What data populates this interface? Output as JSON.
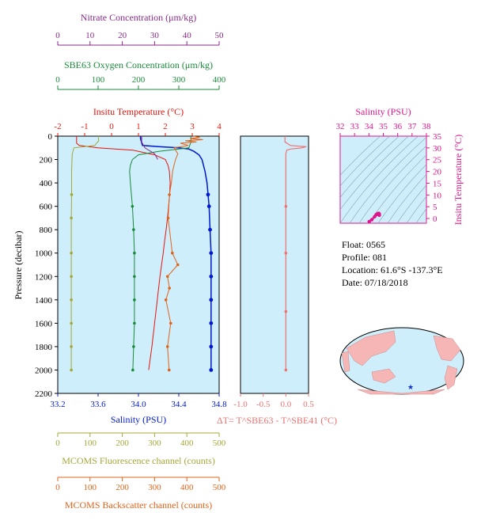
{
  "chart_data": {
    "type": "line",
    "float_info": {
      "float": "Float:  0565",
      "profile": "Profile:  081",
      "location": "Location:  61.6°S  -137.3°E",
      "date": "Date:  07/18/2018"
    },
    "colors": {
      "temperature": "#e8140c",
      "salinity": "#0018d0",
      "oxygen": "#1a8a3a",
      "nitrate": "#8a2a8a",
      "fluorescence": "#a4a83a",
      "backscatter": "#e0641c",
      "delta_t": "#f07070",
      "ts_points": "#e0148c",
      "plot_bg": "#cdeefa"
    },
    "main_plot": {
      "ylabel": "Pressure (decibar)",
      "y_ticks": [
        "0",
        "200",
        "400",
        "600",
        "800",
        "1000",
        "1200",
        "1400",
        "1600",
        "1800",
        "2000",
        "2200"
      ],
      "ylim": [
        0,
        2200
      ],
      "axes": {
        "nitrate": {
          "label": "Nitrate Concentration (μm/kg)",
          "ticks": [
            "0",
            "10",
            "20",
            "30",
            "40",
            "50"
          ],
          "range": [
            0,
            50
          ]
        },
        "oxygen": {
          "label": "SBE63 Oxygen Concentration (μm/kg)",
          "ticks": [
            "0",
            "100",
            "200",
            "300",
            "400"
          ],
          "range": [
            0,
            400
          ]
        },
        "temperature": {
          "label": "Insitu Temperature (°C)",
          "ticks": [
            "-2",
            "-1",
            "0",
            "1",
            "2",
            "3",
            "4"
          ],
          "range": [
            -2,
            4
          ]
        },
        "salinity": {
          "label": "Salinity (PSU)",
          "ticks": [
            "33.2",
            "33.6",
            "34.0",
            "34.4",
            "34.8"
          ],
          "range": [
            33.2,
            34.8
          ]
        },
        "fluorescence": {
          "label": "MCOMS Fluorescence channel (counts)",
          "ticks": [
            "0",
            "100",
            "200",
            "300",
            "400",
            "500"
          ],
          "range": [
            0,
            500
          ]
        },
        "backscatter": {
          "label": "MCOMS Backscatter channel (counts)",
          "ticks": [
            "0",
            "100",
            "200",
            "300",
            "400",
            "500"
          ],
          "range": [
            0,
            500
          ]
        }
      }
    },
    "series": [
      {
        "key": "temperature",
        "p": [
          0,
          10,
          30,
          60,
          80,
          100,
          120,
          160,
          200,
          250,
          300,
          400,
          500,
          600,
          700,
          800,
          900,
          1000,
          1200,
          1400,
          1600,
          1800,
          2000
        ],
        "values": [
          -1.3,
          -1.3,
          -1.3,
          -1.3,
          -1.2,
          -0.5,
          0.8,
          1.6,
          2.0,
          2.1,
          2.15,
          2.18,
          2.16,
          2.12,
          2.08,
          2.03,
          1.97,
          1.92,
          1.8,
          1.7,
          1.6,
          1.5,
          1.38
        ]
      },
      {
        "key": "salinity",
        "p": [
          0,
          20,
          50,
          80,
          90,
          100,
          110,
          130,
          160,
          200,
          300,
          400,
          500,
          600,
          800,
          1000,
          1200,
          1400,
          1600,
          1800,
          2000
        ],
        "values": [
          34.02,
          34.02,
          34.03,
          34.04,
          34.2,
          34.4,
          34.5,
          34.55,
          34.6,
          34.63,
          34.66,
          34.68,
          34.69,
          34.7,
          34.71,
          34.72,
          34.72,
          34.72,
          34.72,
          34.72,
          34.72
        ]
      },
      {
        "key": "oxygen",
        "p": [
          0,
          50,
          100,
          130,
          160,
          200,
          250,
          300,
          400,
          600,
          800,
          1000,
          1200,
          1400,
          1600,
          1800,
          2000
        ],
        "values": [
          330,
          330,
          325,
          250,
          200,
          185,
          180,
          178,
          180,
          185,
          188,
          190,
          190,
          190,
          190,
          188,
          186
        ]
      },
      {
        "key": "fluorescence",
        "p": [
          0,
          20,
          40,
          60,
          80,
          100,
          150,
          200,
          300,
          500,
          700,
          1000,
          1200,
          1400,
          1600,
          1800,
          2000
        ],
        "values": [
          126,
          126,
          127,
          120,
          115,
          50,
          45,
          44,
          43,
          43,
          42,
          42,
          42,
          42,
          42,
          42,
          42
        ]
      },
      {
        "key": "backscatter",
        "p": [
          0,
          10,
          20,
          30,
          40,
          50,
          60,
          80,
          100,
          150,
          200,
          250,
          300,
          400,
          500,
          700,
          1000,
          1100,
          1200,
          1300,
          1400,
          1600,
          1800,
          2000
        ],
        "values": [
          420,
          440,
          410,
          450,
          395,
          430,
          380,
          405,
          360,
          372,
          365,
          360,
          356,
          352,
          346,
          342,
          355,
          372,
          340,
          346,
          335,
          350,
          340,
          345
        ]
      },
      {
        "key": "nitrate",
        "p": [
          0,
          50,
          100,
          150,
          200
        ],
        "values": [
          26,
          26,
          27,
          30,
          31
        ]
      }
    ],
    "delta_t": {
      "label": "ΔT= T^SBE63 - T^SBE41 (°C)",
      "ticks": [
        "-1.0",
        "-0.5",
        "0.0",
        "0.5"
      ],
      "range": [
        -1.0,
        0.5
      ],
      "p": [
        0,
        50,
        80,
        90,
        100,
        110,
        120,
        150,
        200,
        400,
        600,
        1000,
        1500,
        2000
      ],
      "values": [
        -0.02,
        -0.02,
        0.1,
        0.45,
        0.35,
        0.1,
        0.02,
        0.0,
        0.0,
        0.0,
        0.0,
        0.0,
        0.0,
        0.0
      ]
    },
    "ts_plot": {
      "xlabel": "Salinity (PSU)",
      "ylabel": "Insitu Temperature (°C)",
      "x_ticks": [
        "32",
        "33",
        "34",
        "35",
        "36",
        "37",
        "38"
      ],
      "y_ticks": [
        "0",
        "5",
        "10",
        "15",
        "20",
        "25",
        "30",
        "35"
      ],
      "xlim": [
        32,
        38
      ],
      "ylim": [
        -2,
        35
      ],
      "points_s": [
        34.02,
        34.2,
        34.4,
        34.5,
        34.6,
        34.66,
        34.69,
        34.72,
        34.72
      ],
      "points_t": [
        -1.3,
        -0.5,
        0.8,
        1.6,
        2.0,
        2.15,
        2.16,
        1.92,
        1.38
      ]
    },
    "map": {
      "marker": "★"
    }
  }
}
